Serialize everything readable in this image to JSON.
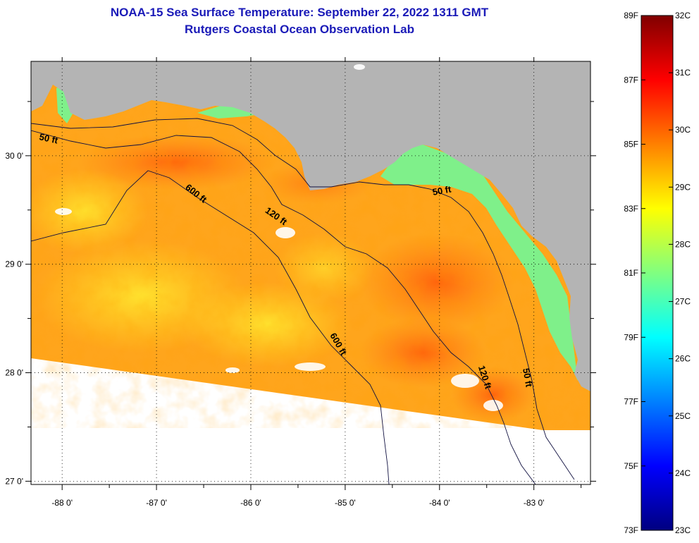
{
  "title": "NOAA-15 Sea Surface Temperature:  September 22, 2022 1311 GMT",
  "subtitle": "Rutgers Coastal Ocean Observation Lab",
  "map": {
    "lon_range": [
      -88.33,
      -82.4
    ],
    "lat_range": [
      26.97,
      30.87
    ],
    "lon_ticks": [
      {
        "value": -88,
        "label": "-88 0'"
      },
      {
        "value": -87,
        "label": "-87 0'"
      },
      {
        "value": -86,
        "label": "-86 0'"
      },
      {
        "value": -85,
        "label": "-85 0'"
      },
      {
        "value": -84,
        "label": "-84 0'"
      },
      {
        "value": -83,
        "label": "-83 0'"
      }
    ],
    "lat_ticks": [
      {
        "value": 30,
        "label": "30 0'"
      },
      {
        "value": 29,
        "label": "29 0'"
      },
      {
        "value": 28,
        "label": "28 0'"
      },
      {
        "value": 27,
        "label": "27 0'"
      }
    ],
    "contour_labels": [
      {
        "text": "50 ft",
        "lon": -88.15,
        "lat": 30.13,
        "angle": 12
      },
      {
        "text": "600 ft",
        "lon": -86.6,
        "lat": 29.63,
        "angle": 38
      },
      {
        "text": "120 ft",
        "lon": -85.75,
        "lat": 29.42,
        "angle": 35
      },
      {
        "text": "50 ft",
        "lon": -83.97,
        "lat": 29.65,
        "angle": -10
      },
      {
        "text": "600 ft",
        "lon": -85.1,
        "lat": 28.25,
        "angle": 60
      },
      {
        "text": "120 ft",
        "lon": -83.55,
        "lat": 27.95,
        "angle": 72
      },
      {
        "text": "50 ft",
        "lon": -83.1,
        "lat": 27.95,
        "angle": 80
      }
    ],
    "colors": {
      "land": "#b4b4b4",
      "no_data": "#ffffff",
      "ocean_warm": "#ffa51c",
      "ocean_mid": "#ffd21c",
      "ocean_cool": "#7ff08a",
      "ocean_hot": "#ff6a10"
    }
  },
  "colorbar": {
    "celsius": [
      {
        "value": 32,
        "label": "32C"
      },
      {
        "value": 31,
        "label": "31C"
      },
      {
        "value": 30,
        "label": "30C"
      },
      {
        "value": 29,
        "label": "29C"
      },
      {
        "value": 28,
        "label": "28C"
      },
      {
        "value": 27,
        "label": "27C"
      },
      {
        "value": 26,
        "label": "26C"
      },
      {
        "value": 25,
        "label": "25C"
      },
      {
        "value": 24,
        "label": "24C"
      },
      {
        "value": 23,
        "label": "23C"
      }
    ],
    "fahrenheit": [
      {
        "value": 89,
        "label": "89F"
      },
      {
        "value": 87,
        "label": "87F"
      },
      {
        "value": 85,
        "label": "85F"
      },
      {
        "value": 83,
        "label": "83F"
      },
      {
        "value": 81,
        "label": "81F"
      },
      {
        "value": 79,
        "label": "79F"
      },
      {
        "value": 77,
        "label": "77F"
      },
      {
        "value": 75,
        "label": "75F"
      },
      {
        "value": 73,
        "label": "73F"
      }
    ],
    "colors_top_to_bottom": [
      "#800000",
      "#ff0000",
      "#ff8000",
      "#ffff00",
      "#80ff80",
      "#00ffff",
      "#0080ff",
      "#0000ff",
      "#000080"
    ]
  }
}
